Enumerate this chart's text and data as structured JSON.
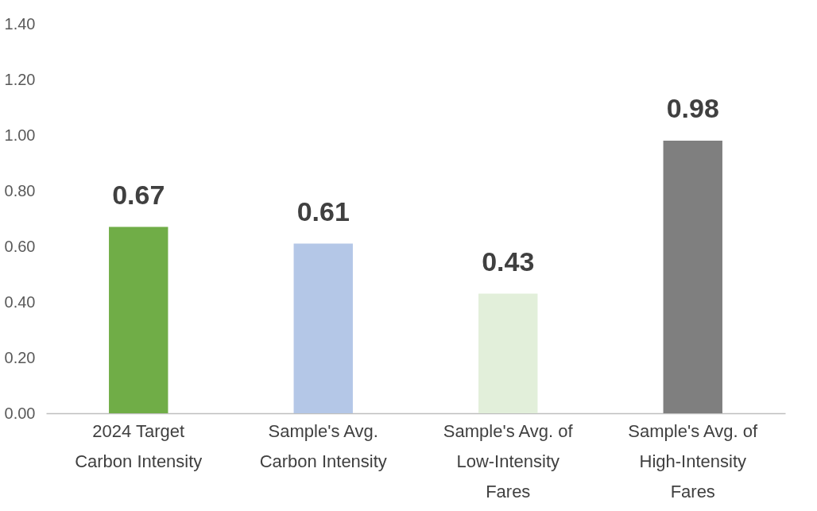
{
  "chart_data": {
    "type": "bar",
    "categories": [
      "2024 Target Carbon Intensity",
      "Sample's Avg. Carbon Intensity",
      "Sample's Avg. of Low-Intensity Fares",
      "Sample's Avg. of High-Intensity Fares"
    ],
    "values": [
      0.67,
      0.61,
      0.43,
      0.98
    ],
    "colors": [
      "#70ad47",
      "#b4c7e7",
      "#e2efda",
      "#7f7f7f"
    ],
    "ylim": [
      0,
      1.4
    ],
    "yticks": [
      {
        "value": 0,
        "label": "0.00"
      },
      {
        "value": 0.2,
        "label": "0.20"
      },
      {
        "value": 0.4,
        "label": "0.40"
      },
      {
        "value": 0.6,
        "label": "0.60"
      },
      {
        "value": 0.8,
        "label": "0.80"
      },
      {
        "value": 1.0,
        "label": "1.00"
      },
      {
        "value": 1.2,
        "label": "1.20"
      },
      {
        "value": 1.4,
        "label": "1.40"
      }
    ],
    "data_labels": true,
    "grid": false,
    "legend": false
  }
}
